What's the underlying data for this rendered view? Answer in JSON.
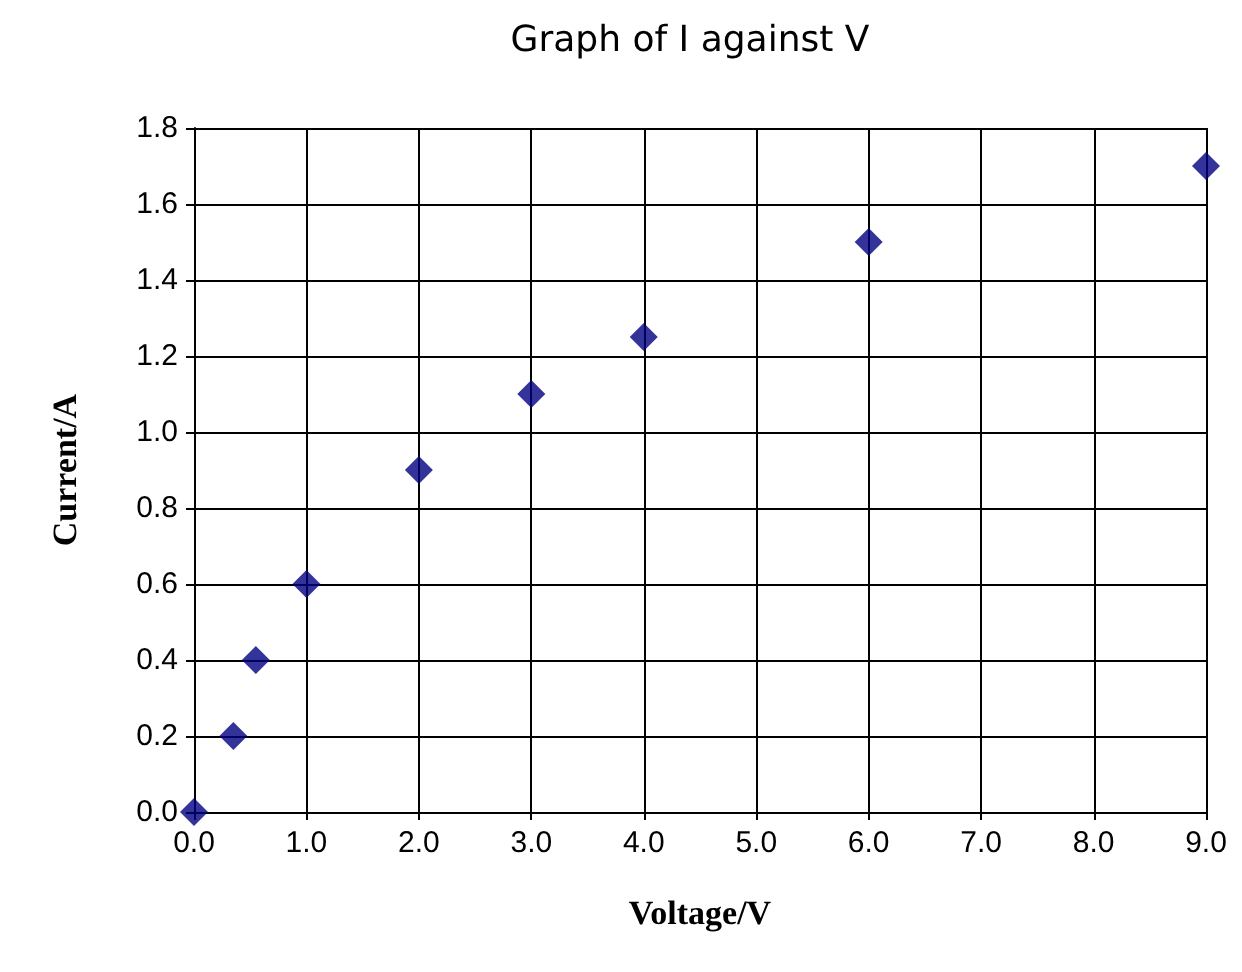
{
  "chart_data": {
    "type": "scatter",
    "title": "Graph of I against V",
    "xlabel": "Voltage/V",
    "ylabel": "Current/A",
    "x": [
      0,
      0.35,
      0.55,
      1,
      2,
      3,
      4,
      6,
      9
    ],
    "series": [
      {
        "color": "#000080",
        "values": [
          0,
          0.2,
          0.4,
          0.6,
          0.9,
          1.1,
          1.25,
          1.5,
          1.7
        ]
      }
    ],
    "xlim": [
      0,
      9
    ],
    "xticks": [
      {
        "value": 0,
        "label": "0.0"
      },
      {
        "value": 1,
        "label": "1.0"
      },
      {
        "value": 2,
        "label": "2.0"
      },
      {
        "value": 3,
        "label": "3.0"
      },
      {
        "value": 4,
        "label": "4.0"
      },
      {
        "value": 5,
        "label": "5.0"
      },
      {
        "value": 6,
        "label": "6.0"
      },
      {
        "value": 7,
        "label": "7.0"
      },
      {
        "value": 8,
        "label": "8.0"
      },
      {
        "value": 9,
        "label": "9.0"
      }
    ],
    "ylim": [
      0,
      1.8
    ],
    "yticks": [
      {
        "value": 0,
        "label": "0.0"
      },
      {
        "value": 0.2,
        "label": "0.2"
      },
      {
        "value": 0.4,
        "label": "0.4"
      },
      {
        "value": 0.6,
        "label": "0.6"
      },
      {
        "value": 0.8,
        "label": "0.8"
      },
      {
        "value": 1,
        "label": "1.0"
      },
      {
        "value": 1.2,
        "label": "1.2"
      },
      {
        "value": 1.4,
        "label": "1.4"
      },
      {
        "value": 1.6,
        "label": "1.6"
      },
      {
        "value": 1.8,
        "label": "1.8"
      }
    ],
    "grid": true,
    "marker": "diamond"
  }
}
